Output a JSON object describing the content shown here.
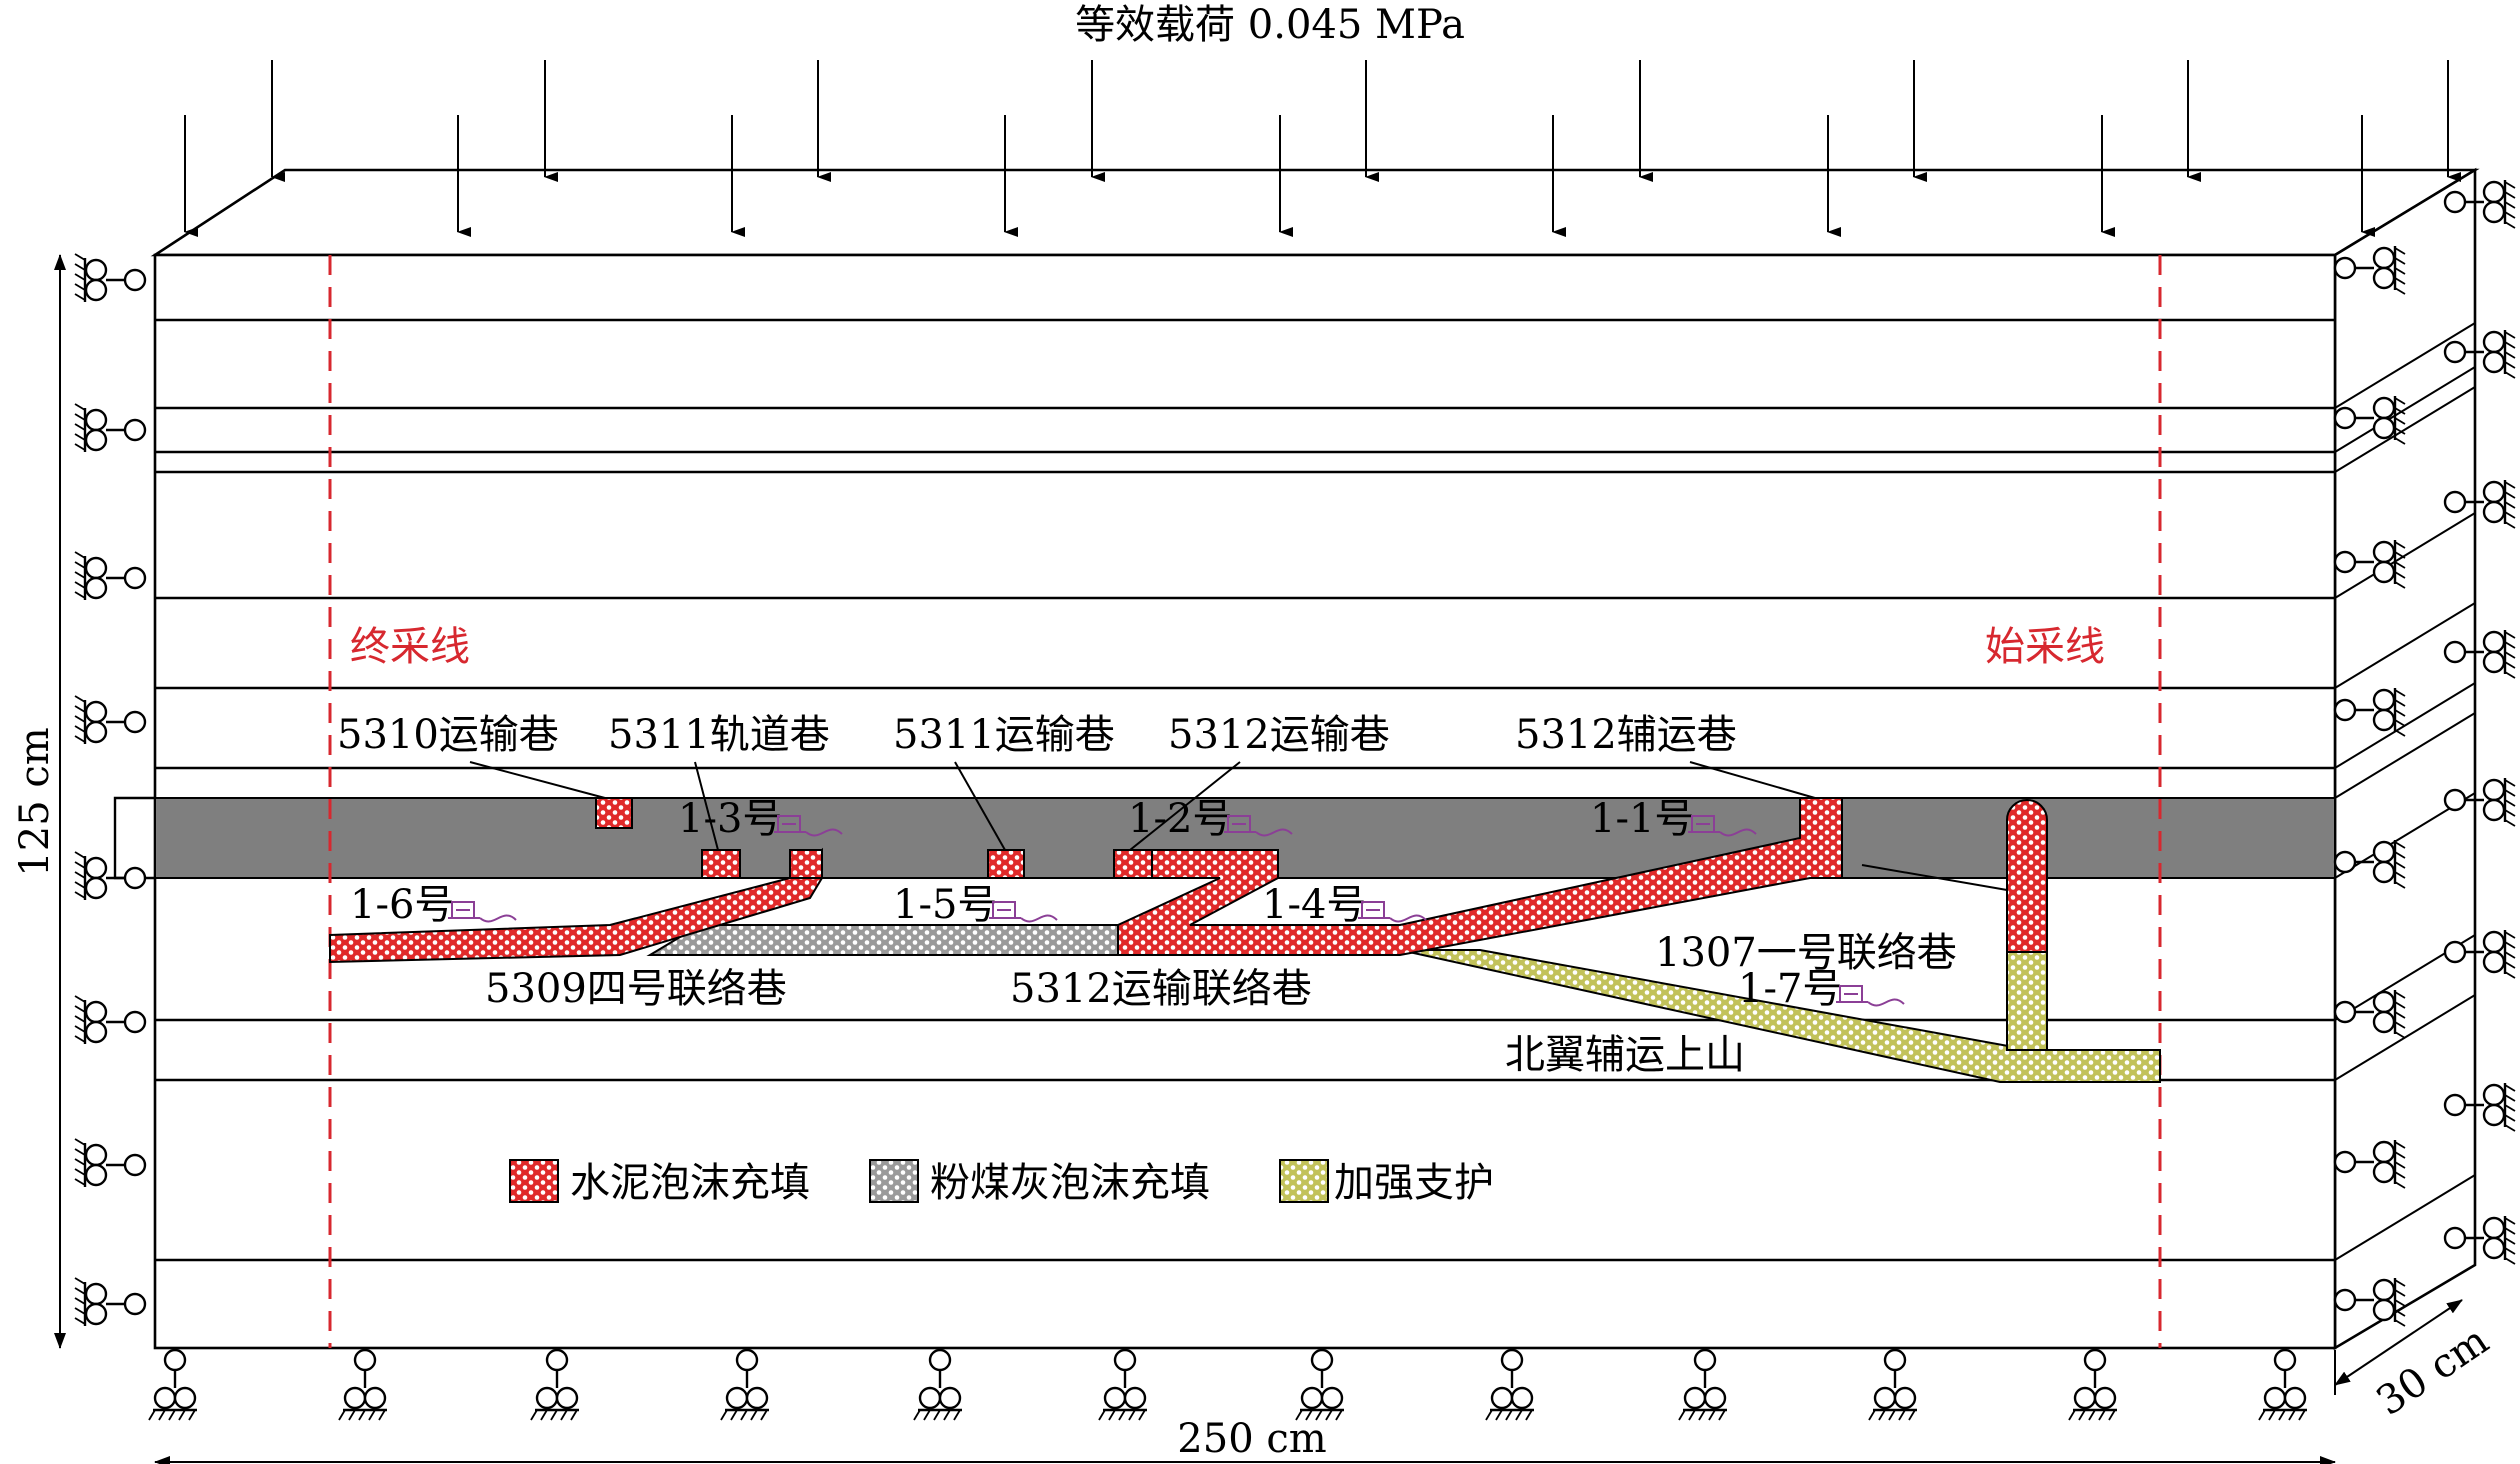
{
  "load_label": "等效载荷 0.045 MPa",
  "dimensions": {
    "height": "125 cm",
    "width": "250 cm",
    "depth": "30 cm"
  },
  "lines": {
    "end_line": "终采线",
    "start_line": "始采线"
  },
  "roadways": {
    "r5310_transport": "5310运输巷",
    "r5311_track": "5311轨道巷",
    "r5311_transport": "5311运输巷",
    "r5312_transport": "5312运输巷",
    "r5312_aux": "5312辅运巷",
    "r5309_link4": "5309四号联络巷",
    "r5312_transport_link": "5312运输联络巷",
    "r1307_link1": "1307一号联络巷",
    "north_wing_aux_uphill": "北翼辅运上山"
  },
  "sensors": [
    "1-1号",
    "1-2号",
    "1-3号",
    "1-4号",
    "1-5号",
    "1-6号",
    "1-7号"
  ],
  "legend": [
    {
      "label": "水泥泡沫充填",
      "color": "#e02a2a"
    },
    {
      "label": "粉煤灰泡沫充填",
      "color": "#a8a8a8"
    },
    {
      "label": "加强支护",
      "color": "#c8c85a"
    }
  ],
  "colors": {
    "coal_seam": "#7f7f7f",
    "mining_line": "#d7282f",
    "sensor": "#8b3f96"
  }
}
